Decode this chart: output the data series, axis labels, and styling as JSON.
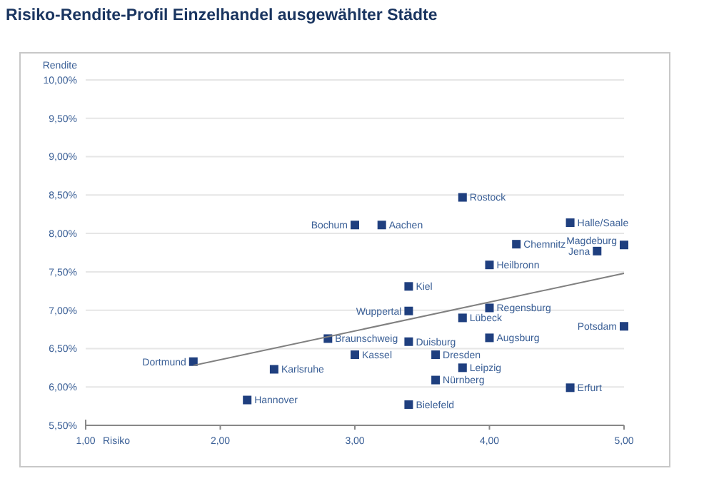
{
  "chart_data": {
    "type": "scatter",
    "title": "Risiko-Rendite-Profil Einzelhandel ausgewählter Städte",
    "xlabel": "Risiko",
    "ylabel": "Rendite",
    "marker": "square",
    "grid": "y",
    "xlim": [
      1,
      5
    ],
    "xticks": [
      {
        "value": 1,
        "label": "1,00"
      },
      {
        "value": 2,
        "label": "2,00"
      },
      {
        "value": 3,
        "label": "3,00"
      },
      {
        "value": 4,
        "label": "4,00"
      },
      {
        "value": 5,
        "label": "5,00"
      }
    ],
    "ylim": [
      5.5,
      10
    ],
    "yticks": [
      {
        "value": 5.5,
        "label": "5,50%"
      },
      {
        "value": 6,
        "label": "6,00%"
      },
      {
        "value": 6.5,
        "label": "6,50%"
      },
      {
        "value": 7,
        "label": "7,00%"
      },
      {
        "value": 7.5,
        "label": "7,50%"
      },
      {
        "value": 8,
        "label": "8,00%"
      },
      {
        "value": 8.5,
        "label": "8,50%"
      },
      {
        "value": 9,
        "label": "9,00%"
      },
      {
        "value": 9.5,
        "label": "9,50%"
      },
      {
        "value": 10,
        "label": "10,00%"
      }
    ],
    "series": [
      {
        "name": "Dortmund",
        "color": "#1f3f7f",
        "x": [
          1.8
        ],
        "values": [
          6.33
        ]
      },
      {
        "name": "Hannover",
        "color": "#1f3f7f",
        "x": [
          2.2
        ],
        "values": [
          5.83
        ]
      },
      {
        "name": "Karlsruhe",
        "color": "#1f3f7f",
        "x": [
          2.4
        ],
        "values": [
          6.23
        ]
      },
      {
        "name": "Braunschweig",
        "color": "#1f3f7f",
        "x": [
          2.8
        ],
        "values": [
          6.63
        ]
      },
      {
        "name": "Kassel",
        "color": "#1f3f7f",
        "x": [
          3.0
        ],
        "values": [
          6.42
        ]
      },
      {
        "name": "Bochum",
        "color": "#1f3f7f",
        "x": [
          3.0
        ],
        "values": [
          8.11
        ]
      },
      {
        "name": "Aachen",
        "color": "#1f3f7f",
        "x": [
          3.2
        ],
        "values": [
          8.11
        ]
      },
      {
        "name": "Rostock",
        "color": "#1f3f7f",
        "x": [
          3.8
        ],
        "values": [
          8.47
        ]
      },
      {
        "name": "Halle/Saale",
        "color": "#1f3f7f",
        "x": [
          4.6
        ],
        "values": [
          8.14
        ]
      },
      {
        "name": "Chemnitz",
        "color": "#1f3f7f",
        "x": [
          4.2
        ],
        "values": [
          7.86
        ]
      },
      {
        "name": "Jena",
        "color": "#1f3f7f",
        "x": [
          4.8
        ],
        "values": [
          7.77
        ]
      },
      {
        "name": "Magdeburg",
        "color": "#1f3f7f",
        "x": [
          5.0
        ],
        "values": [
          7.85
        ]
      },
      {
        "name": "Heilbronn",
        "color": "#1f3f7f",
        "x": [
          4.0
        ],
        "values": [
          7.59
        ]
      },
      {
        "name": "Kiel",
        "color": "#1f3f7f",
        "x": [
          3.4
        ],
        "values": [
          7.31
        ]
      },
      {
        "name": "Wuppertal",
        "color": "#1f3f7f",
        "x": [
          3.4
        ],
        "values": [
          6.99
        ]
      },
      {
        "name": "Regensburg",
        "color": "#1f3f7f",
        "x": [
          4.0
        ],
        "values": [
          7.03
        ]
      },
      {
        "name": "Lübeck",
        "color": "#1f3f7f",
        "x": [
          3.8
        ],
        "values": [
          6.9
        ]
      },
      {
        "name": "Potsdam",
        "color": "#1f3f7f",
        "x": [
          5.0
        ],
        "values": [
          6.79
        ]
      },
      {
        "name": "Duisburg",
        "color": "#1f3f7f",
        "x": [
          3.4
        ],
        "values": [
          6.59
        ]
      },
      {
        "name": "Augsburg",
        "color": "#1f3f7f",
        "x": [
          4.0
        ],
        "values": [
          6.64
        ]
      },
      {
        "name": "Dresden",
        "color": "#1f3f7f",
        "x": [
          3.6
        ],
        "values": [
          6.42
        ]
      },
      {
        "name": "Leipzig",
        "color": "#1f3f7f",
        "x": [
          3.8
        ],
        "values": [
          6.25
        ]
      },
      {
        "name": "Nürnberg",
        "color": "#1f3f7f",
        "x": [
          3.6
        ],
        "values": [
          6.09
        ]
      },
      {
        "name": "Erfurt",
        "color": "#1f3f7f",
        "x": [
          4.6
        ],
        "values": [
          5.99
        ]
      },
      {
        "name": "Bielefeld",
        "color": "#1f3f7f",
        "x": [
          3.4
        ],
        "values": [
          5.77
        ]
      },
      {
        "type": "line",
        "marker": "none",
        "color": "#808080",
        "x": [
          1.8,
          5.0
        ],
        "values": [
          6.28,
          7.48
        ]
      }
    ]
  }
}
